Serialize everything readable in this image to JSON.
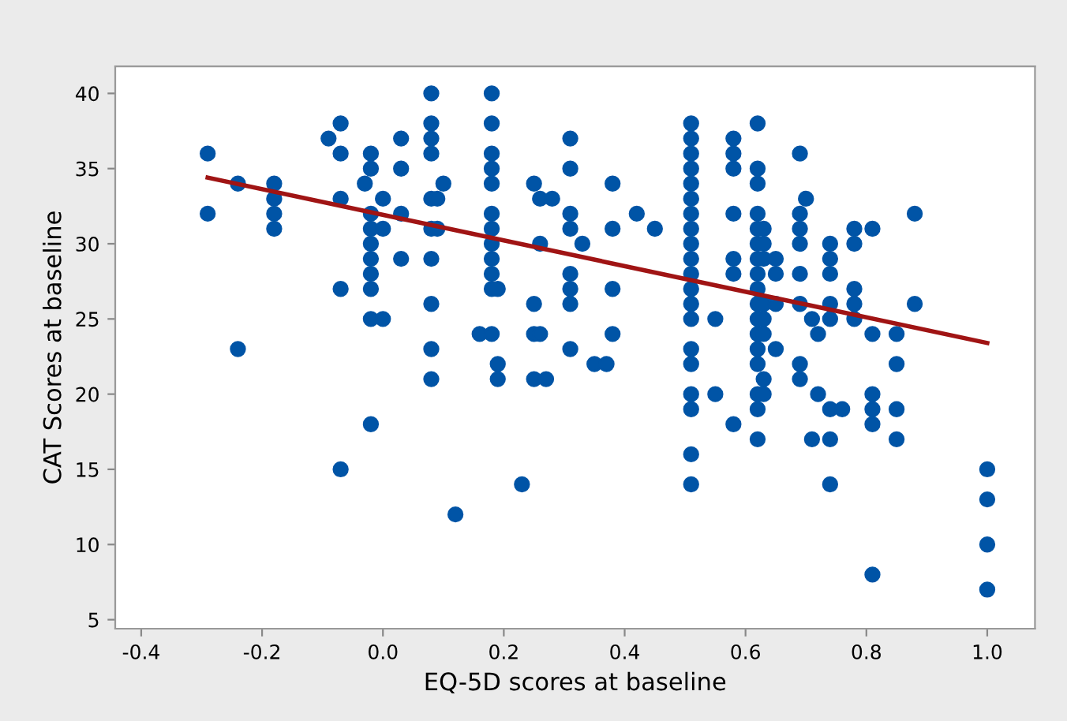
{
  "chart_data": {
    "type": "scatter",
    "xlabel": "EQ-5D scores at baseline",
    "ylabel": "CAT Scores at baseline",
    "xlim": [
      -0.443,
      1.079
    ],
    "ylim": [
      4.4,
      41.8
    ],
    "xticks": [
      {
        "value": -0.4,
        "label": "-0.4"
      },
      {
        "value": -0.2,
        "label": "-0.2"
      },
      {
        "value": 0.0,
        "label": "0.0"
      },
      {
        "value": 0.2,
        "label": "0.2"
      },
      {
        "value": 0.4,
        "label": "0.4"
      },
      {
        "value": 0.6,
        "label": "0.6"
      },
      {
        "value": 0.8,
        "label": "0.8"
      },
      {
        "value": 1.0,
        "label": "1.0"
      }
    ],
    "yticks": [
      5,
      10,
      15,
      20,
      25,
      30,
      35,
      40
    ],
    "grid": false,
    "marker": "circle",
    "series": [
      {
        "color": "#0054a6",
        "x": [
          -0.29,
          -0.29,
          -0.24,
          -0.24,
          -0.18,
          -0.18,
          -0.18,
          -0.18,
          -0.09,
          -0.07,
          -0.07,
          -0.07,
          -0.07,
          -0.07,
          -0.03,
          -0.02,
          -0.02,
          -0.02,
          -0.02,
          -0.02,
          -0.02,
          -0.02,
          -0.02,
          -0.02,
          -0.02,
          0.0,
          0.0,
          0.0,
          0.03,
          0.03,
          0.03,
          0.03,
          0.08,
          0.08,
          0.08,
          0.08,
          0.08,
          0.08,
          0.08,
          0.08,
          0.08,
          0.08,
          0.09,
          0.09,
          0.1,
          0.12,
          0.16,
          0.18,
          0.18,
          0.18,
          0.18,
          0.18,
          0.18,
          0.18,
          0.18,
          0.18,
          0.18,
          0.18,
          0.18,
          0.19,
          0.19,
          0.19,
          0.23,
          0.25,
          0.25,
          0.25,
          0.25,
          0.26,
          0.26,
          0.26,
          0.27,
          0.28,
          0.31,
          0.31,
          0.31,
          0.31,
          0.31,
          0.31,
          0.31,
          0.31,
          0.33,
          0.35,
          0.37,
          0.38,
          0.38,
          0.38,
          0.38,
          0.42,
          0.45,
          0.51,
          0.51,
          0.51,
          0.51,
          0.51,
          0.51,
          0.51,
          0.51,
          0.51,
          0.51,
          0.51,
          0.51,
          0.51,
          0.51,
          0.51,
          0.51,
          0.51,
          0.51,
          0.51,
          0.51,
          0.55,
          0.55,
          0.58,
          0.58,
          0.58,
          0.58,
          0.58,
          0.58,
          0.58,
          0.62,
          0.62,
          0.62,
          0.62,
          0.62,
          0.62,
          0.62,
          0.62,
          0.62,
          0.62,
          0.62,
          0.62,
          0.62,
          0.62,
          0.62,
          0.62,
          0.62,
          0.63,
          0.63,
          0.63,
          0.63,
          0.63,
          0.63,
          0.63,
          0.63,
          0.65,
          0.65,
          0.65,
          0.65,
          0.69,
          0.69,
          0.69,
          0.69,
          0.69,
          0.69,
          0.69,
          0.69,
          0.7,
          0.71,
          0.71,
          0.72,
          0.72,
          0.74,
          0.74,
          0.74,
          0.74,
          0.74,
          0.74,
          0.74,
          0.74,
          0.76,
          0.78,
          0.78,
          0.78,
          0.78,
          0.78,
          0.81,
          0.81,
          0.81,
          0.81,
          0.81,
          0.81,
          0.85,
          0.85,
          0.85,
          0.85,
          0.88,
          0.88,
          1.0,
          1.0,
          1.0,
          1.0
        ],
        "values": [
          36,
          32,
          34,
          23,
          34,
          33,
          32,
          31,
          37,
          38,
          36,
          33,
          27,
          15,
          34,
          36,
          35,
          32,
          31,
          30,
          29,
          28,
          27,
          25,
          18,
          33,
          31,
          25,
          37,
          35,
          32,
          29,
          40,
          38,
          37,
          36,
          33,
          31,
          29,
          26,
          23,
          21,
          33,
          31,
          34,
          12,
          24,
          40,
          38,
          36,
          35,
          34,
          32,
          31,
          30,
          29,
          28,
          27,
          24,
          27,
          22,
          21,
          14,
          34,
          26,
          24,
          21,
          33,
          30,
          24,
          21,
          33,
          37,
          35,
          32,
          31,
          28,
          27,
          26,
          23,
          30,
          22,
          22,
          34,
          31,
          27,
          24,
          32,
          31,
          38,
          37,
          36,
          35,
          34,
          33,
          32,
          31,
          30,
          29,
          28,
          27,
          26,
          25,
          23,
          22,
          20,
          19,
          16,
          14,
          25,
          20,
          37,
          36,
          35,
          32,
          29,
          28,
          18,
          38,
          35,
          34,
          32,
          31,
          30,
          29,
          28,
          27,
          26,
          25,
          24,
          23,
          22,
          20,
          19,
          17,
          31,
          30,
          29,
          26,
          25,
          24,
          21,
          20,
          29,
          28,
          26,
          23,
          36,
          32,
          31,
          30,
          28,
          26,
          22,
          21,
          33,
          25,
          17,
          24,
          20,
          30,
          29,
          28,
          26,
          25,
          19,
          17,
          14,
          19,
          31,
          30,
          27,
          26,
          25,
          31,
          24,
          20,
          19,
          18,
          8,
          24,
          22,
          19,
          17,
          32,
          26,
          15,
          13,
          10,
          7
        ]
      },
      {
        "type": "line",
        "color": "#a01414",
        "marker": "none",
        "x": [
          -0.29,
          1.0
        ],
        "values": [
          34.4,
          23.4
        ]
      }
    ]
  }
}
